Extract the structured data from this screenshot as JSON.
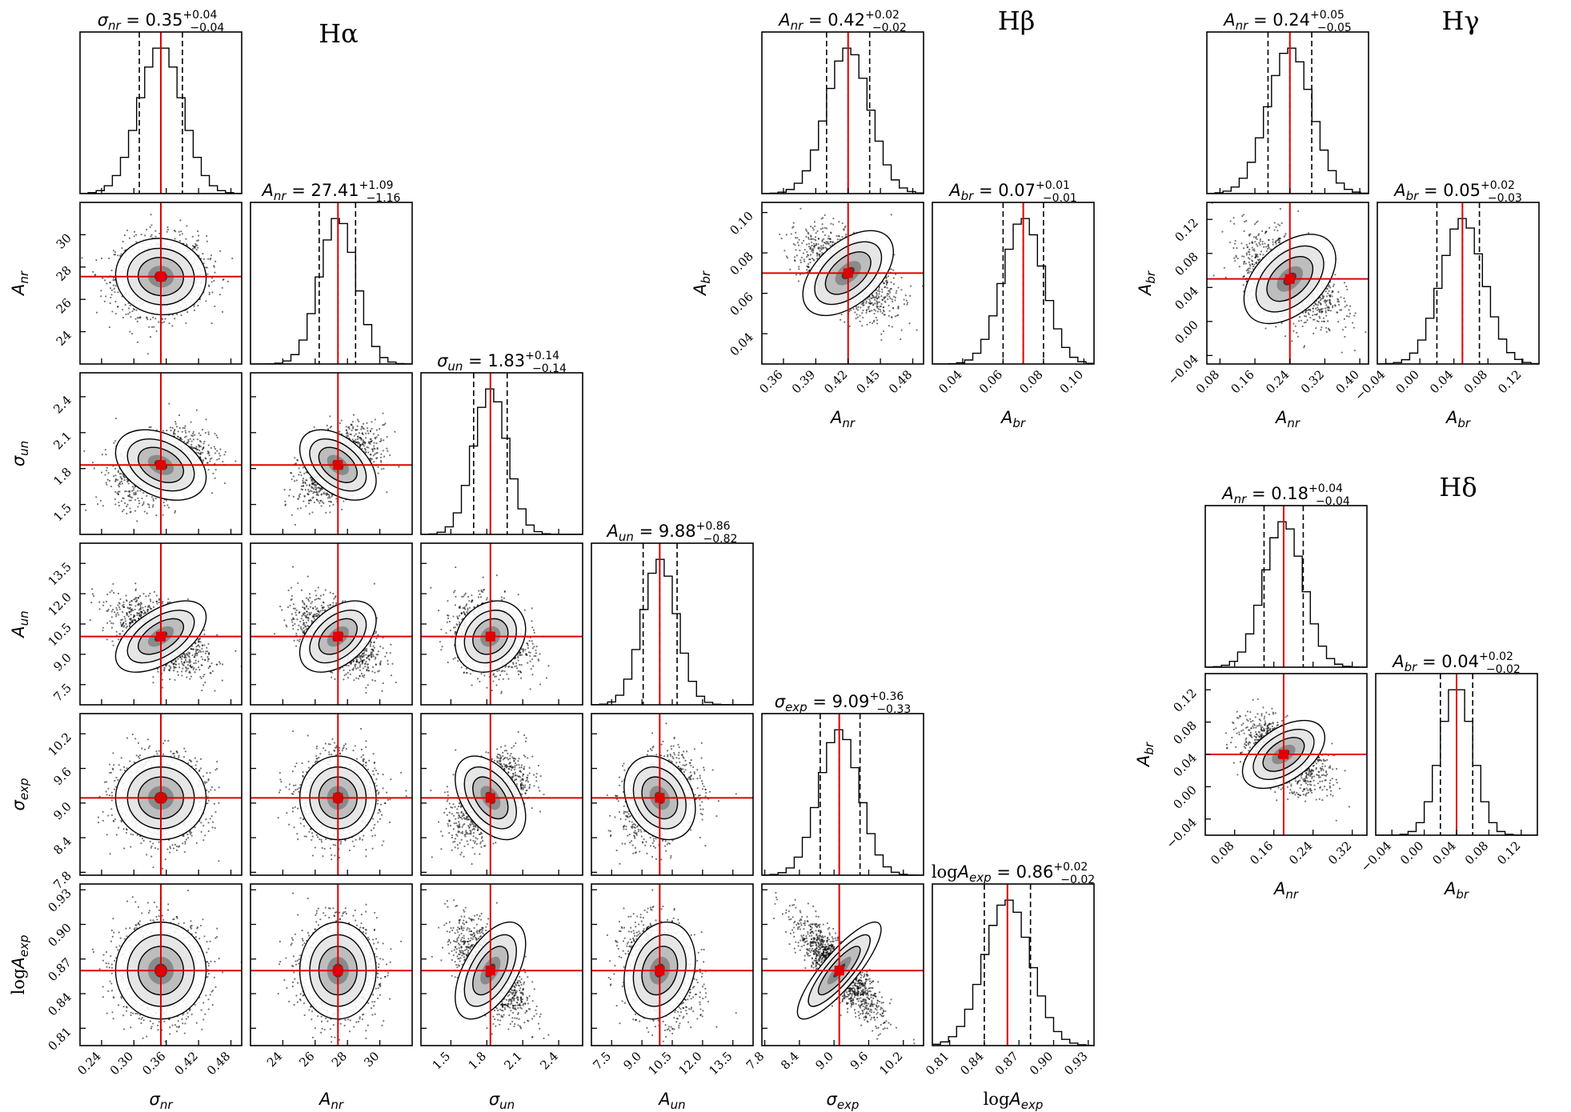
{
  "chart_data": [
    {
      "type": "corner",
      "group": "Hα",
      "truth_line_color": "#e00000",
      "parameters": [
        {
          "name": "σ_nr",
          "label": "σnr",
          "median": 0.35,
          "plus": 0.04,
          "minus": 0.04,
          "title": "σnr = 0.35 +0.04 −0.04",
          "range": [
            0.2,
            0.5
          ],
          "ticks": [
            "0.24",
            "0.30",
            "0.36",
            "0.42",
            "0.48"
          ],
          "tick_values": [
            0.24,
            0.3,
            0.36,
            0.42,
            0.48
          ]
        },
        {
          "name": "A_nr",
          "label": "Anr",
          "median": 27.41,
          "plus": 1.09,
          "minus": 1.16,
          "title": "Anr = 27.41 +1.09 −1.16",
          "range": [
            22,
            32
          ],
          "ticks": [
            "24",
            "26",
            "28",
            "30"
          ],
          "tick_values": [
            24,
            26,
            28,
            30
          ]
        },
        {
          "name": "σ_un",
          "label": "σun",
          "median": 1.83,
          "plus": 0.14,
          "minus": 0.14,
          "title": "σun = 1.83 +0.14 −0.14",
          "range": [
            1.25,
            2.6
          ],
          "ticks": [
            "1.5",
            "1.8",
            "2.1",
            "2.4"
          ],
          "tick_values": [
            1.5,
            1.8,
            2.1,
            2.4
          ]
        },
        {
          "name": "A_un",
          "label": "Aun",
          "median": 9.88,
          "plus": 0.86,
          "minus": 0.82,
          "title": "Aun = 9.88 +0.86 −0.82",
          "range": [
            6.5,
            14.5
          ],
          "ticks": [
            "7.5",
            "9.0",
            "10.5",
            "12.0",
            "13.5"
          ],
          "tick_values": [
            7.5,
            9.0,
            10.5,
            12.0,
            13.5
          ]
        },
        {
          "name": "σ_exp",
          "label": "σexp",
          "median": 9.09,
          "plus": 0.36,
          "minus": 0.33,
          "title": "σexp = 9.09 +0.36 −0.33",
          "range": [
            7.75,
            10.55
          ],
          "ticks": [
            "7.8",
            "8.4",
            "9.0",
            "9.6",
            "10.2"
          ],
          "tick_values": [
            7.8,
            8.4,
            9.0,
            9.6,
            10.2
          ]
        },
        {
          "name": "log A_exp",
          "label": "logAexp",
          "median": 0.86,
          "plus": 0.02,
          "minus": 0.02,
          "title": "logAexp = 0.86 +0.02 −0.02",
          "range": [
            0.795,
            0.935
          ],
          "ticks": [
            "0.81",
            "0.84",
            "0.87",
            "0.90",
            "0.93"
          ],
          "tick_values": [
            0.81,
            0.84,
            0.87,
            0.9,
            0.93
          ]
        }
      ]
    },
    {
      "type": "corner",
      "group": "Hβ",
      "truth_line_color": "#e00000",
      "parameters": [
        {
          "name": "A_nr",
          "label": "Anr",
          "median": 0.42,
          "plus": 0.02,
          "minus": 0.02,
          "title": "Anr = 0.42 +0.02 −0.02",
          "range": [
            0.34,
            0.49
          ],
          "ticks": [
            "0.36",
            "0.39",
            "0.42",
            "0.45",
            "0.48"
          ],
          "tick_values": [
            0.36,
            0.39,
            0.42,
            0.45,
            0.48
          ]
        },
        {
          "name": "A_br",
          "label": "Abr",
          "median": 0.07,
          "plus": 0.01,
          "minus": 0.01,
          "title": "Abr = 0.07 +0.01 −0.01",
          "range": [
            0.025,
            0.105
          ],
          "ticks": [
            "0.04",
            "0.06",
            "0.08",
            "0.10"
          ],
          "tick_values": [
            0.04,
            0.06,
            0.08,
            0.1
          ]
        }
      ]
    },
    {
      "type": "corner",
      "group": "Hγ",
      "truth_line_color": "#e00000",
      "parameters": [
        {
          "name": "A_nr",
          "label": "Anr",
          "median": 0.24,
          "plus": 0.05,
          "minus": 0.05,
          "title": "Anr = 0.24 +0.05 −0.05",
          "range": [
            0.05,
            0.42
          ],
          "ticks": [
            "0.08",
            "0.16",
            "0.24",
            "0.32",
            "0.40"
          ],
          "tick_values": [
            0.08,
            0.16,
            0.24,
            0.32,
            0.4
          ]
        },
        {
          "name": "A_br",
          "label": "Abr",
          "median": 0.05,
          "plus": 0.02,
          "minus": 0.03,
          "title": "Abr = 0.05 +0.02 −0.03",
          "range": [
            -0.05,
            0.14
          ],
          "ticks": [
            "−0.04",
            "0.00",
            "0.04",
            "0.08",
            "0.12"
          ],
          "tick_values": [
            -0.04,
            0.0,
            0.04,
            0.08,
            0.12
          ]
        }
      ]
    },
    {
      "type": "corner",
      "group": "Hδ",
      "truth_line_color": "#e00000",
      "parameters": [
        {
          "name": "A_nr",
          "label": "Anr",
          "median": 0.18,
          "plus": 0.04,
          "minus": 0.04,
          "title": "Anr = 0.18 +0.04 −0.04",
          "range": [
            0.02,
            0.35
          ],
          "ticks": [
            "0.08",
            "0.16",
            "0.24",
            "0.32"
          ],
          "tick_values": [
            0.08,
            0.16,
            0.24,
            0.32
          ]
        },
        {
          "name": "A_br",
          "label": "Abr",
          "median": 0.04,
          "plus": 0.02,
          "minus": 0.02,
          "title": "Abr = 0.04 +0.02 −0.02",
          "range": [
            -0.06,
            0.14
          ],
          "ticks": [
            "−0.04",
            "0.00",
            "0.04",
            "0.08",
            "0.12"
          ],
          "tick_values": [
            -0.04,
            0.0,
            0.04,
            0.08,
            0.12
          ]
        }
      ]
    }
  ]
}
